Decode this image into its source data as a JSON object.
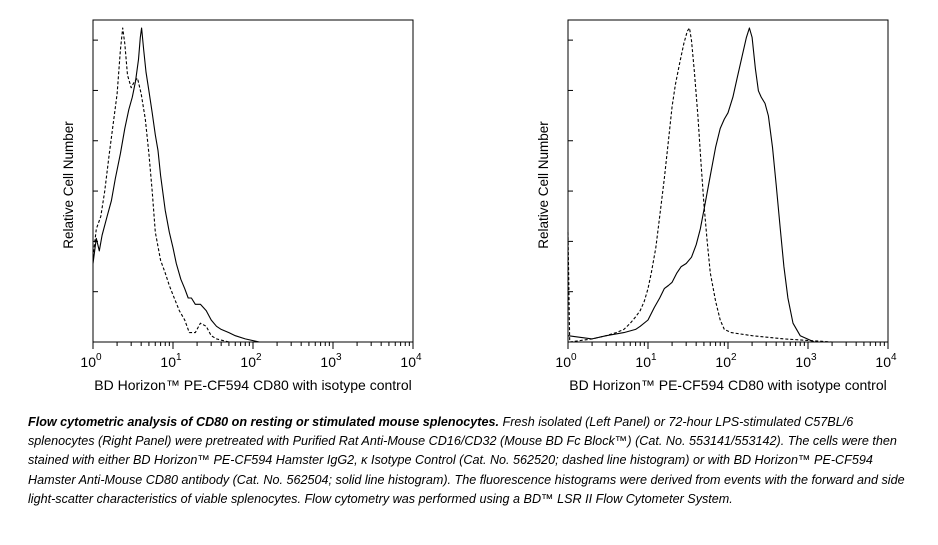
{
  "charts": [
    {
      "type": "line",
      "ylabel": "Relative Cell Number",
      "xlabel": "BD Horizon™ PE-CF594 CD80 with isotype control",
      "xscale": "log",
      "xlim": [
        1,
        10000
      ],
      "x_ticks": [
        {
          "base": "10",
          "exp": "0"
        },
        {
          "base": "10",
          "exp": "1"
        },
        {
          "base": "10",
          "exp": "2"
        },
        {
          "base": "10",
          "exp": "3"
        },
        {
          "base": "10",
          "exp": "4"
        }
      ],
      "series": [
        {
          "style": "dashed",
          "points": [
            [
              1.0,
              0.27
            ],
            [
              1.1,
              0.36
            ],
            [
              1.25,
              0.4
            ],
            [
              1.4,
              0.48
            ],
            [
              1.6,
              0.6
            ],
            [
              1.8,
              0.7
            ],
            [
              2.0,
              0.79
            ],
            [
              2.2,
              0.93
            ],
            [
              2.35,
              1.0
            ],
            [
              2.5,
              0.95
            ],
            [
              2.7,
              0.85
            ],
            [
              3.0,
              0.81
            ],
            [
              3.3,
              0.83
            ],
            [
              3.6,
              0.84
            ],
            [
              4.0,
              0.79
            ],
            [
              4.5,
              0.71
            ],
            [
              5.0,
              0.6
            ],
            [
              5.5,
              0.48
            ],
            [
              6.0,
              0.35
            ],
            [
              7.0,
              0.26
            ],
            [
              8.0,
              0.22
            ],
            [
              9.0,
              0.18
            ],
            [
              10.0,
              0.15
            ],
            [
              12.0,
              0.1
            ],
            [
              14.0,
              0.07
            ],
            [
              16.0,
              0.03
            ],
            [
              19.0,
              0.03
            ],
            [
              22.0,
              0.06
            ],
            [
              26.0,
              0.05
            ],
            [
              30.0,
              0.02
            ],
            [
              35.0,
              0.01
            ],
            [
              50.0,
              0.0
            ],
            [
              10000,
              0.0
            ]
          ]
        },
        {
          "style": "solid",
          "points": [
            [
              1.0,
              0.25
            ],
            [
              1.1,
              0.33
            ],
            [
              1.2,
              0.29
            ],
            [
              1.3,
              0.34
            ],
            [
              1.5,
              0.4
            ],
            [
              1.7,
              0.45
            ],
            [
              1.9,
              0.52
            ],
            [
              2.2,
              0.6
            ],
            [
              2.5,
              0.68
            ],
            [
              2.8,
              0.74
            ],
            [
              3.1,
              0.78
            ],
            [
              3.4,
              0.83
            ],
            [
              3.7,
              0.9
            ],
            [
              3.9,
              0.97
            ],
            [
              4.05,
              1.0
            ],
            [
              4.3,
              0.93
            ],
            [
              4.6,
              0.86
            ],
            [
              5.0,
              0.8
            ],
            [
              5.5,
              0.73
            ],
            [
              6.0,
              0.66
            ],
            [
              6.5,
              0.61
            ],
            [
              7.0,
              0.53
            ],
            [
              8.0,
              0.42
            ],
            [
              9.0,
              0.35
            ],
            [
              10.0,
              0.3
            ],
            [
              11.0,
              0.25
            ],
            [
              12.5,
              0.2
            ],
            [
              14.0,
              0.17
            ],
            [
              15.5,
              0.14
            ],
            [
              17.0,
              0.14
            ],
            [
              19.0,
              0.12
            ],
            [
              22.0,
              0.12
            ],
            [
              26.0,
              0.1
            ],
            [
              30.0,
              0.07
            ],
            [
              35.0,
              0.05
            ],
            [
              40.0,
              0.04
            ],
            [
              50.0,
              0.03
            ],
            [
              60.0,
              0.02
            ],
            [
              80.0,
              0.01
            ],
            [
              120.0,
              0.0
            ],
            [
              10000,
              0.0
            ]
          ]
        }
      ]
    },
    {
      "type": "line",
      "ylabel": "Relative Cell Number",
      "xlabel": "BD Horizon™ PE-CF594 CD80 with isotype control",
      "xscale": "log",
      "xlim": [
        1,
        10000
      ],
      "x_ticks": [
        {
          "base": "10",
          "exp": "0"
        },
        {
          "base": "10",
          "exp": "1"
        },
        {
          "base": "10",
          "exp": "2"
        },
        {
          "base": "10",
          "exp": "3"
        },
        {
          "base": "10",
          "exp": "4"
        }
      ],
      "series": [
        {
          "style": "dashed",
          "points": [
            [
              1.0,
              0.35
            ],
            [
              1.05,
              0.0
            ],
            [
              2.0,
              0.01
            ],
            [
              3.0,
              0.02
            ],
            [
              4.0,
              0.03
            ],
            [
              5.0,
              0.04
            ],
            [
              6.0,
              0.06
            ],
            [
              7.0,
              0.08
            ],
            [
              8.0,
              0.1
            ],
            [
              9.0,
              0.13
            ],
            [
              10.0,
              0.17
            ],
            [
              11.0,
              0.22
            ],
            [
              12.5,
              0.3
            ],
            [
              14.0,
              0.4
            ],
            [
              16.0,
              0.52
            ],
            [
              18.0,
              0.64
            ],
            [
              20.0,
              0.75
            ],
            [
              22.0,
              0.82
            ],
            [
              25.0,
              0.89
            ],
            [
              28.0,
              0.95
            ],
            [
              31.0,
              0.99
            ],
            [
              33.0,
              1.0
            ],
            [
              35.0,
              0.96
            ],
            [
              38.0,
              0.86
            ],
            [
              42.0,
              0.72
            ],
            [
              46.0,
              0.57
            ],
            [
              50.0,
              0.44
            ],
            [
              55.0,
              0.32
            ],
            [
              60.0,
              0.22
            ],
            [
              70.0,
              0.13
            ],
            [
              80.0,
              0.07
            ],
            [
              90.0,
              0.04
            ],
            [
              110.0,
              0.03
            ],
            [
              200.0,
              0.02
            ],
            [
              500.0,
              0.01
            ],
            [
              2000.0,
              0.0
            ],
            [
              10000,
              0.0
            ]
          ]
        },
        {
          "style": "solid",
          "points": [
            [
              1.0,
              0.02
            ],
            [
              2.0,
              0.01
            ],
            [
              3.0,
              0.02
            ],
            [
              5.0,
              0.03
            ],
            [
              7.0,
              0.04
            ],
            [
              8.0,
              0.05
            ],
            [
              10.0,
              0.07
            ],
            [
              12.0,
              0.11
            ],
            [
              14.0,
              0.14
            ],
            [
              16.0,
              0.17
            ],
            [
              18.0,
              0.18
            ],
            [
              20.0,
              0.19
            ],
            [
              23.0,
              0.22
            ],
            [
              26.0,
              0.24
            ],
            [
              30.0,
              0.25
            ],
            [
              35.0,
              0.27
            ],
            [
              40.0,
              0.31
            ],
            [
              45.0,
              0.36
            ],
            [
              50.0,
              0.42
            ],
            [
              60.0,
              0.53
            ],
            [
              70.0,
              0.62
            ],
            [
              80.0,
              0.68
            ],
            [
              90.0,
              0.71
            ],
            [
              100.0,
              0.73
            ],
            [
              115.0,
              0.78
            ],
            [
              130.0,
              0.84
            ],
            [
              150.0,
              0.91
            ],
            [
              170.0,
              0.97
            ],
            [
              185.0,
              1.0
            ],
            [
              200.0,
              0.97
            ],
            [
              220.0,
              0.87
            ],
            [
              240.0,
              0.8
            ],
            [
              260.0,
              0.78
            ],
            [
              290.0,
              0.76
            ],
            [
              320.0,
              0.72
            ],
            [
              360.0,
              0.62
            ],
            [
              400.0,
              0.5
            ],
            [
              450.0,
              0.36
            ],
            [
              500.0,
              0.24
            ],
            [
              560.0,
              0.14
            ],
            [
              650.0,
              0.06
            ],
            [
              800.0,
              0.02
            ],
            [
              1200.0,
              0.0
            ],
            [
              10000,
              0.0
            ]
          ]
        }
      ]
    }
  ],
  "caption": {
    "lead": "Flow cytometric analysis of CD80 on resting or stimulated mouse splenocytes.",
    "text": "Fresh isolated (Left Panel) or 72-hour LPS-stimulated C57BL/6 splenocytes (Right Panel) were pretreated with Purified Rat Anti-Mouse CD16/CD32 (Mouse BD Fc Block™) (Cat. No. 553141/553142). The cells were then stained with either BD Horizon™ PE-CF594 Hamster IgG2, κ Isotype Control  (Cat. No. 562520; dashed line histogram) or with BD Horizon™ PE-CF594 Hamster Anti-Mouse CD80 antibody (Cat. No. 562504; solid line histogram). The fluorescence histograms were derived from events with the forward and side light-scatter characteristics of viable splenocytes. Flow cytometry was performed using a BD™ LSR II Flow Cytometer System."
  }
}
